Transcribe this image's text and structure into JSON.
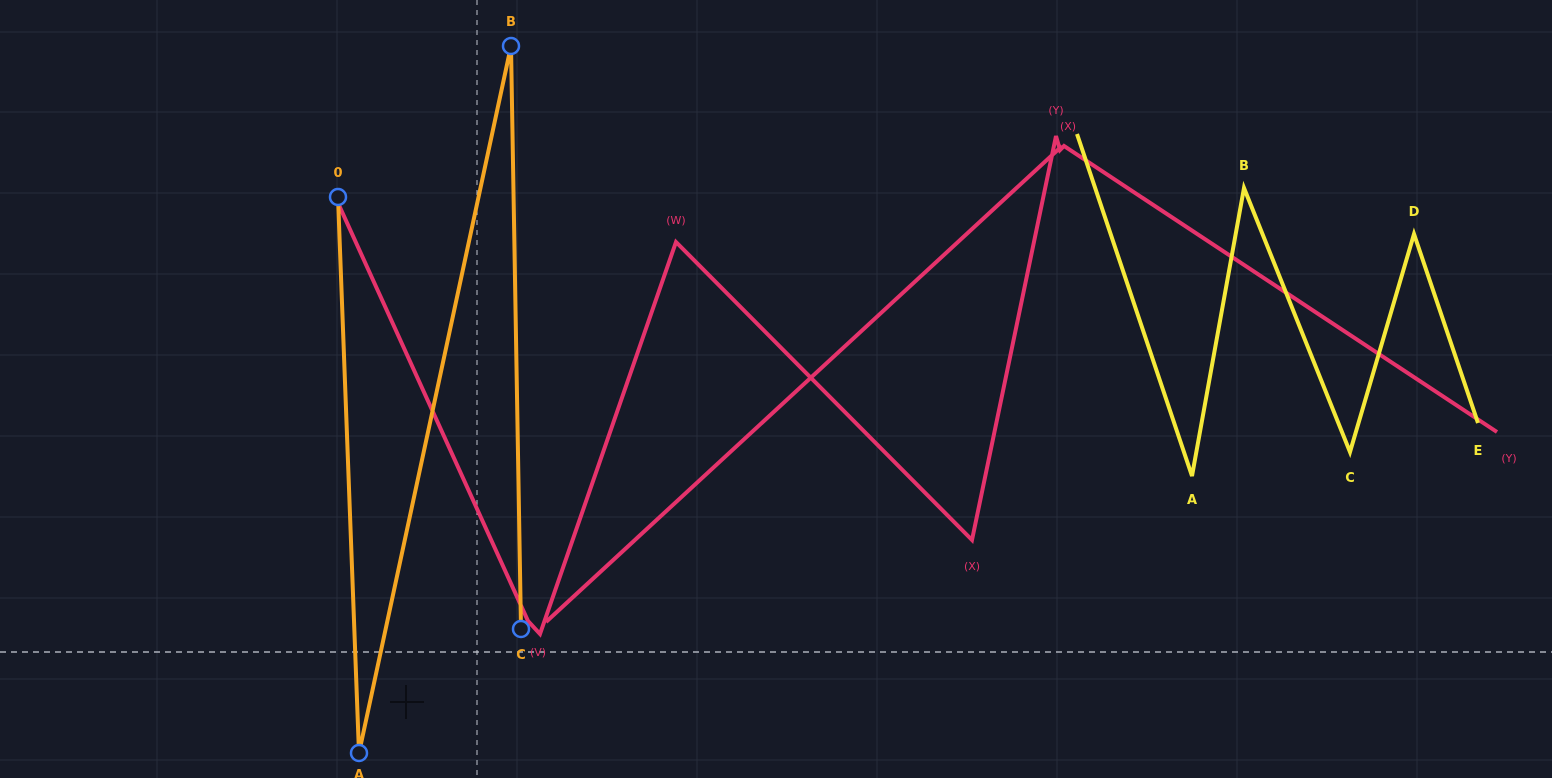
{
  "colors": {
    "background": "#161a27",
    "grid": "#272c3b",
    "crosshair": "#c8ccd6",
    "orange": "#f5a623",
    "pink": "#e5336c",
    "yellow": "#f5e93a",
    "anchor": "#3a78f0"
  },
  "chart_data": {
    "type": "line",
    "grid": true,
    "series": [
      {
        "key": "orange",
        "color": "#f5a623",
        "anchors": true,
        "points": [
          {
            "x": 338,
            "y": 197,
            "label": "0"
          },
          {
            "x": 359,
            "y": 753,
            "label": "A"
          },
          {
            "x": 511,
            "y": 46,
            "label": "B"
          },
          {
            "x": 521,
            "y": 629,
            "label": "C"
          }
        ]
      },
      {
        "key": "pink",
        "color": "#e5336c",
        "anchors": false,
        "points": [
          {
            "x": 338,
            "y": 203,
            "label": ""
          },
          {
            "x": 528,
            "y": 621,
            "label": ""
          },
          {
            "x": 540,
            "y": 634,
            "label": "(V)"
          },
          {
            "x": 676,
            "y": 242,
            "label": "(W)"
          },
          {
            "x": 972,
            "y": 540,
            "label": "(X)"
          },
          {
            "x": 1056,
            "y": 136,
            "label": "(Y)"
          },
          {
            "x": 1060,
            "y": 150,
            "label": ""
          },
          {
            "x": 1064,
            "y": 146,
            "label": "(X)"
          },
          {
            "x": 1497,
            "y": 432,
            "label": "(Y)"
          }
        ],
        "extra_path": [
          {
            "x": 546,
            "y": 622
          },
          {
            "x": 1062,
            "y": 146
          }
        ]
      },
      {
        "key": "yellow",
        "color": "#f5e93a",
        "anchors": false,
        "points": [
          {
            "x": 1077,
            "y": 134,
            "label": ""
          },
          {
            "x": 1192,
            "y": 476,
            "label": "A"
          },
          {
            "x": 1244,
            "y": 188,
            "label": "B"
          },
          {
            "x": 1350,
            "y": 452,
            "label": "C"
          },
          {
            "x": 1414,
            "y": 234,
            "label": "D"
          },
          {
            "x": 1478,
            "y": 423,
            "label": "E"
          }
        ]
      }
    ],
    "crosshair": {
      "x": 477,
      "y": 652
    }
  }
}
